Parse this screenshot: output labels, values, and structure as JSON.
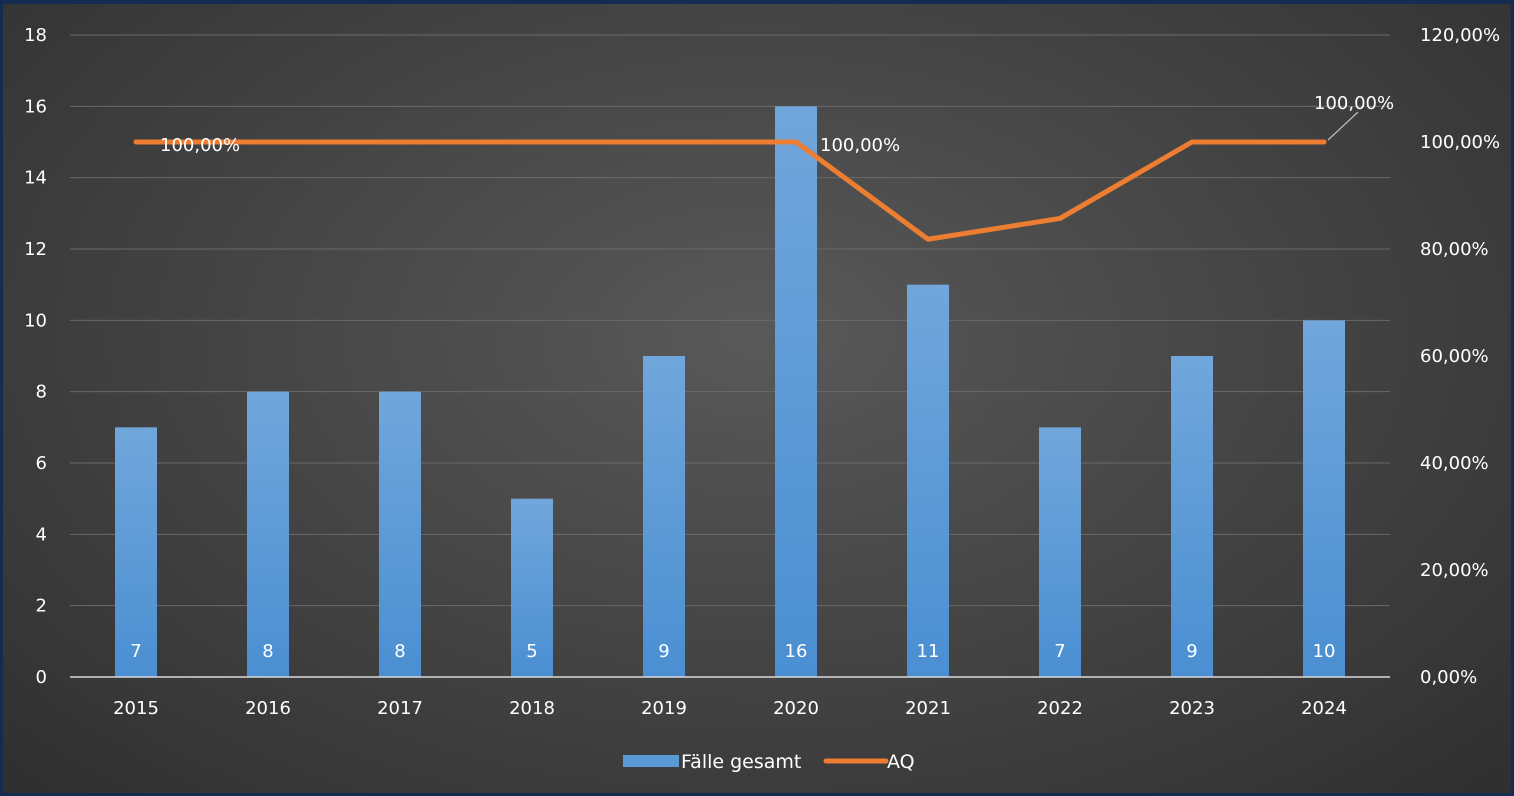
{
  "chart_data": {
    "type": "bar",
    "categories": [
      "2015",
      "2016",
      "2017",
      "2018",
      "2019",
      "2020",
      "2021",
      "2022",
      "2023",
      "2024"
    ],
    "series": [
      {
        "name": "Fälle gesamt",
        "type": "bar",
        "axis": "left",
        "color": "#5b9bd5",
        "values": [
          7,
          8,
          8,
          5,
          9,
          16,
          11,
          7,
          9,
          10
        ],
        "data_labels": [
          "7",
          "8",
          "8",
          "5",
          "9",
          "16",
          "11",
          "7",
          "9",
          "10"
        ]
      },
      {
        "name": "AQ",
        "type": "line",
        "axis": "right",
        "color": "#ed7d31",
        "values": [
          1.0,
          1.0,
          1.0,
          1.0,
          1.0,
          1.0,
          0.8182,
          0.8571,
          1.0,
          1.0
        ],
        "data_labels": [
          {
            "index": 0,
            "text": "100,00%"
          },
          {
            "index": 5,
            "text": "100,00%"
          },
          {
            "index": 9,
            "text": "100,00%"
          }
        ]
      }
    ],
    "y_left": {
      "ylim": [
        0,
        18
      ],
      "ticks": [
        0,
        2,
        4,
        6,
        8,
        10,
        12,
        14,
        16,
        18
      ],
      "tick_labels": [
        "0",
        "2",
        "4",
        "6",
        "8",
        "10",
        "12",
        "14",
        "16",
        "18"
      ]
    },
    "y_right": {
      "ylim": [
        0,
        1.2
      ],
      "ticks": [
        0,
        0.2,
        0.4,
        0.6,
        0.8,
        1.0,
        1.2
      ],
      "tick_labels": [
        "0,00%",
        "20,00%",
        "40,00%",
        "60,00%",
        "80,00%",
        "100,00%",
        "120,00%"
      ]
    },
    "grid": true,
    "legend": {
      "placement": "bottom",
      "entries": [
        "Fälle gesamt",
        "AQ"
      ]
    },
    "title": "",
    "xlabel": "",
    "ylabel": ""
  }
}
